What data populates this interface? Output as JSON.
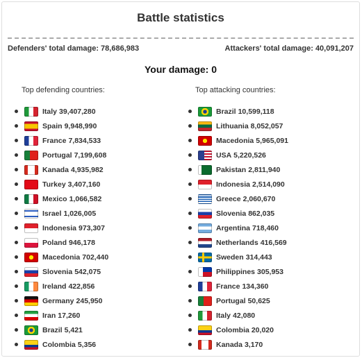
{
  "title": "Battle statistics",
  "defenders_total_label": "Defenders' total damage:",
  "defenders_total_value": "78,686,983",
  "attackers_total_label": "Attackers' total damage:",
  "attackers_total_value": "40,091,207",
  "your_damage_label": "Your damage:",
  "your_damage_value": "0",
  "defending": {
    "heading": "Top defending countries:",
    "items": [
      {
        "country": "Italy",
        "value": "39,407,280",
        "flag": "italy-flag-icon",
        "bg": "linear-gradient(90deg,#1f9a3a 33%,#ffffff 33%,#ffffff 66%,#d5232f 66%)"
      },
      {
        "country": "Spain",
        "value": "9,948,990",
        "flag": "spain-flag-icon",
        "bg": "linear-gradient(180deg,#c8102e 25%,#f7c600 25%,#f7c600 75%,#c8102e 75%)"
      },
      {
        "country": "France",
        "value": "7,834,533",
        "flag": "france-flag-icon",
        "bg": "linear-gradient(90deg,#1f3e9a 33%,#ffffff 33%,#ffffff 66%,#e0243a 66%)"
      },
      {
        "country": "Portugal",
        "value": "7,199,608",
        "flag": "portugal-flag-icon",
        "bg": "linear-gradient(90deg,#17803a 40%,#e0201b 40%)"
      },
      {
        "country": "Kanada",
        "value": "4,935,982",
        "flag": "canada-flag-icon",
        "bg": "linear-gradient(90deg,#d52b1e 25%,#ffffff 25%,#ffffff 75%,#d52b1e 75%)"
      },
      {
        "country": "Turkey",
        "value": "3,407,160",
        "flag": "turkey-flag-icon",
        "bg": "#e30a17"
      },
      {
        "country": "Mexico",
        "value": "1,066,582",
        "flag": "mexico-flag-icon",
        "bg": "linear-gradient(90deg,#0f7a43 33%,#ffffff 33%,#ffffff 66%,#ce1126 66%)"
      },
      {
        "country": "Israel",
        "value": "1,026,005",
        "flag": "israel-flag-icon",
        "bg": "linear-gradient(180deg,#ffffff 15%,#2a5cc0 15%,#2a5cc0 28%,#ffffff 28%,#ffffff 72%,#2a5cc0 72%,#2a5cc0 85%,#ffffff 85%)"
      },
      {
        "country": "Indonesia",
        "value": "973,307",
        "flag": "indonesia-flag-icon",
        "bg": "linear-gradient(180deg,#e0202b 50%,#ffffff 50%)"
      },
      {
        "country": "Poland",
        "value": "946,178",
        "flag": "poland-flag-icon",
        "bg": "linear-gradient(180deg,#ffffff 50%,#dc143c 50%)"
      },
      {
        "country": "Macedonia",
        "value": "702,440",
        "flag": "macedonia-flag-icon",
        "bg": "radial-gradient(circle,#ffe600 25%,#d20000 26%)"
      },
      {
        "country": "Slovenia",
        "value": "542,075",
        "flag": "slovenia-flag-icon",
        "bg": "linear-gradient(180deg,#ffffff 33%,#1a3fa8 33%,#1a3fa8 66%,#e0202b 66%)"
      },
      {
        "country": "Ireland",
        "value": "422,856",
        "flag": "ireland-flag-icon",
        "bg": "linear-gradient(90deg,#169b62 33%,#ffffff 33%,#ffffff 66%,#ff883e 66%)"
      },
      {
        "country": "Germany",
        "value": "245,950",
        "flag": "germany-flag-icon",
        "bg": "linear-gradient(180deg,#111111 33%,#dd0000 33%,#dd0000 66%,#ffce00 66%)"
      },
      {
        "country": "Iran",
        "value": "17,260",
        "flag": "iran-flag-icon",
        "bg": "linear-gradient(180deg,#239f40 33%,#ffffff 33%,#ffffff 66%,#da0000 66%)"
      },
      {
        "country": "Brazil",
        "value": "5,421",
        "flag": "brazil-flag-icon",
        "bg": "radial-gradient(circle,#1c3f94 22%,#ffd600 23%,#ffd600 42%,#1a9b3a 43%)"
      },
      {
        "country": "Colombia",
        "value": "5,356",
        "flag": "colombia-flag-icon",
        "bg": "linear-gradient(180deg,#fcd116 50%,#003893 50%,#003893 75%,#ce1126 75%)"
      }
    ]
  },
  "attacking": {
    "heading": "Top attacking countries:",
    "items": [
      {
        "country": "Brazil",
        "value": "10,599,118",
        "flag": "brazil-flag-icon",
        "bg": "radial-gradient(circle,#1c3f94 22%,#ffd600 23%,#ffd600 42%,#1a9b3a 43%)"
      },
      {
        "country": "Lithuania",
        "value": "8,052,057",
        "flag": "lithuania-flag-icon",
        "bg": "linear-gradient(180deg,#fdb913 33%,#006a44 33%,#006a44 66%,#c1272d 66%)"
      },
      {
        "country": "Macedonia",
        "value": "5,965,091",
        "flag": "macedonia-flag-icon",
        "bg": "radial-gradient(circle,#ffe600 25%,#d20000 26%)"
      },
      {
        "country": "USA",
        "value": "5,220,526",
        "flag": "usa-flag-icon",
        "bg": "linear-gradient(90deg,#2b3f8f 45%,transparent 45%),repeating-linear-gradient(180deg,#c8102e 0px,#c8102e 2px,#ffffff 2px,#ffffff 4px)"
      },
      {
        "country": "Pakistan",
        "value": "2,811,940",
        "flag": "pakistan-flag-icon",
        "bg": "linear-gradient(90deg,#ffffff 25%,#0b6b2e 25%)"
      },
      {
        "country": "Indonesia",
        "value": "2,514,090",
        "flag": "indonesia-flag-icon",
        "bg": "linear-gradient(180deg,#e0202b 50%,#ffffff 50%)"
      },
      {
        "country": "Greece",
        "value": "2,060,670",
        "flag": "greece-flag-icon",
        "bg": "repeating-linear-gradient(180deg,#1a5fb4 0px,#1a5fb4 1.6px,#ffffff 1.6px,#ffffff 3.2px)"
      },
      {
        "country": "Slovenia",
        "value": "862,035",
        "flag": "slovenia-flag-icon",
        "bg": "linear-gradient(180deg,#ffffff 33%,#1a3fa8 33%,#1a3fa8 66%,#e0202b 66%)"
      },
      {
        "country": "Argentina",
        "value": "718,460",
        "flag": "argentina-flag-icon",
        "bg": "linear-gradient(180deg,#74acdf 33%,#ffffff 33%,#ffffff 66%,#74acdf 66%)"
      },
      {
        "country": "Netherlands",
        "value": "416,569",
        "flag": "netherlands-flag-icon",
        "bg": "linear-gradient(180deg,#ae1c28 33%,#ffffff 33%,#ffffff 66%,#21468b 66%)"
      },
      {
        "country": "Sweden",
        "value": "314,443",
        "flag": "sweden-flag-icon",
        "bg": "linear-gradient(90deg,transparent 30%,#fecc00 30%,#fecc00 45%,transparent 45%),linear-gradient(180deg,#006aa7 40%,#fecc00 40%,#fecc00 60%,#006aa7 60%)"
      },
      {
        "country": "Philippines",
        "value": "305,953",
        "flag": "philippines-flag-icon",
        "bg": "linear-gradient(90deg,#ffffff 35%,transparent 35%),linear-gradient(180deg,#0038a8 50%,#ce1126 50%)"
      },
      {
        "country": "France",
        "value": "134,360",
        "flag": "france-flag-icon",
        "bg": "linear-gradient(90deg,#1f3e9a 33%,#ffffff 33%,#ffffff 66%,#e0243a 66%)"
      },
      {
        "country": "Portugal",
        "value": "50,625",
        "flag": "portugal-flag-icon",
        "bg": "linear-gradient(90deg,#17803a 40%,#e0201b 40%)"
      },
      {
        "country": "Italy",
        "value": "42,080",
        "flag": "italy-flag-icon",
        "bg": "linear-gradient(90deg,#1f9a3a 33%,#ffffff 33%,#ffffff 66%,#d5232f 66%)"
      },
      {
        "country": "Colombia",
        "value": "20,020",
        "flag": "colombia-flag-icon",
        "bg": "linear-gradient(180deg,#fcd116 50%,#003893 50%,#003893 75%,#ce1126 75%)"
      },
      {
        "country": "Kanada",
        "value": "3,170",
        "flag": "canada-flag-icon",
        "bg": "linear-gradient(90deg,#d52b1e 25%,#ffffff 25%,#ffffff 75%,#d52b1e 75%)"
      }
    ]
  }
}
